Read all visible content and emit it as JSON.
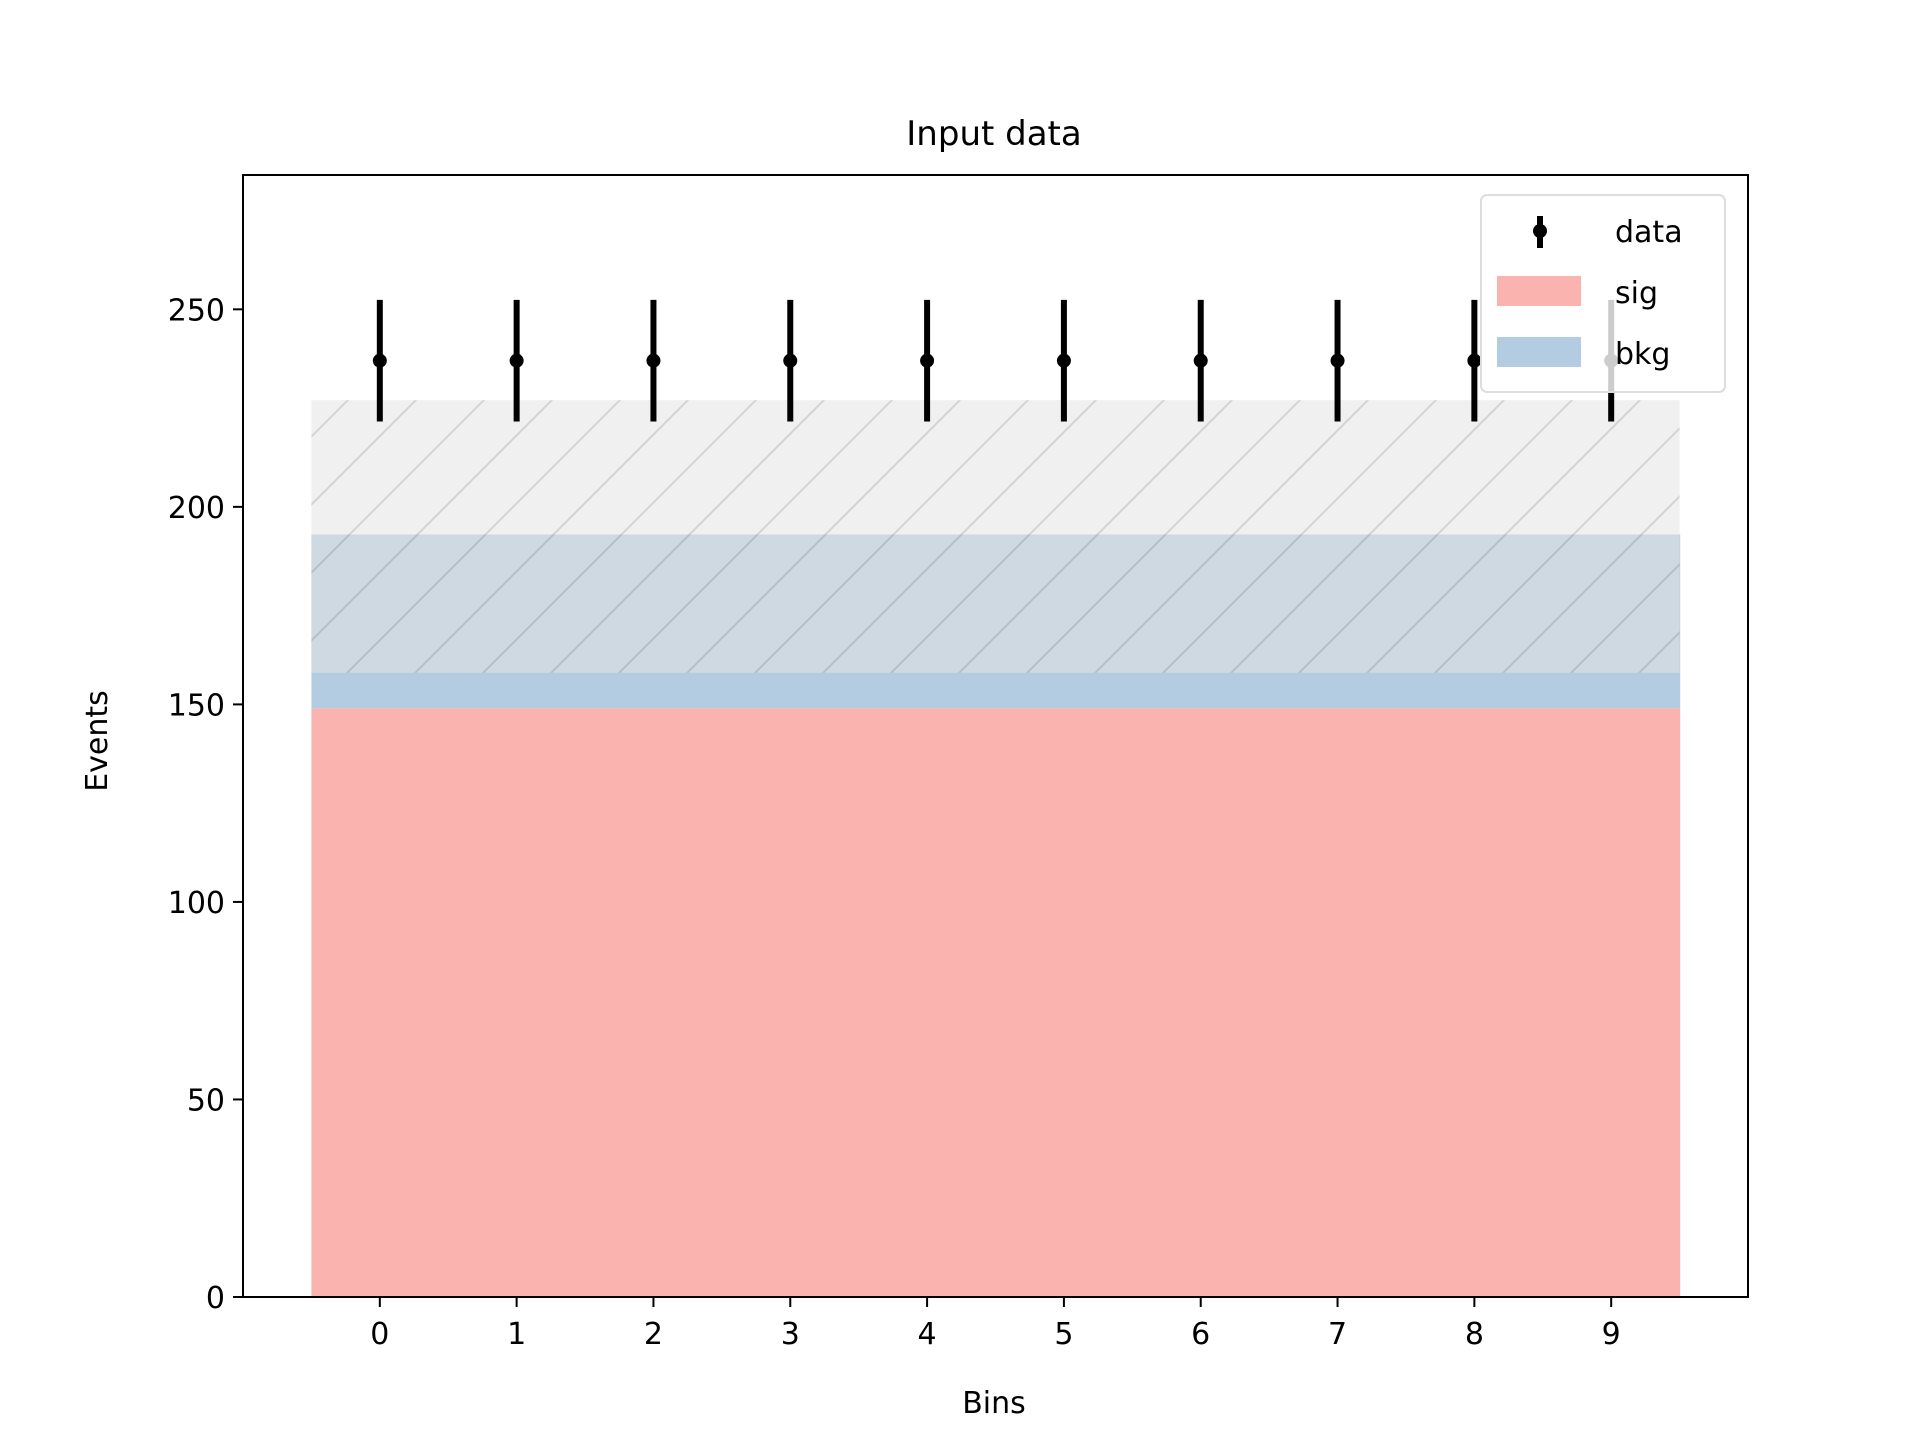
{
  "chart_data": {
    "type": "bar",
    "title": "Input data",
    "xlabel": "Bins",
    "ylabel": "Events",
    "categories": [
      "0",
      "1",
      "2",
      "3",
      "4",
      "5",
      "6",
      "7",
      "8",
      "9"
    ],
    "x_ticks": [
      "0",
      "1",
      "2",
      "3",
      "4",
      "5",
      "6",
      "7",
      "8",
      "9"
    ],
    "y_ticks": [
      "0",
      "50",
      "100",
      "150",
      "200",
      "250"
    ],
    "ylim": [
      0,
      284
    ],
    "xlim": [
      -1.0,
      10.0
    ],
    "stacked": true,
    "series": [
      {
        "name": "sig",
        "color": "#fab3ae",
        "values": [
          149,
          149,
          149,
          149,
          149,
          149,
          149,
          149,
          149,
          149
        ]
      },
      {
        "name": "bkg",
        "color": "#b3cce1",
        "values": [
          44,
          44,
          44,
          44,
          44,
          44,
          44,
          44,
          44,
          44
        ]
      }
    ],
    "uncertainty_band": {
      "lower": 158,
      "upper": 227,
      "color": "#e4e4e4",
      "hatch": "diagonal"
    },
    "data_points": {
      "name": "data",
      "x": [
        0,
        1,
        2,
        3,
        4,
        5,
        6,
        7,
        8,
        9
      ],
      "y": [
        237,
        237,
        237,
        237,
        237,
        237,
        237,
        237,
        237,
        237
      ],
      "yerr": [
        15.4,
        15.4,
        15.4,
        15.4,
        15.4,
        15.4,
        15.4,
        15.4,
        15.4,
        15.4
      ],
      "color": "#000000"
    },
    "legend": {
      "placement": "top-right",
      "entries": [
        "data",
        "sig",
        "bkg"
      ]
    },
    "grid": false
  }
}
